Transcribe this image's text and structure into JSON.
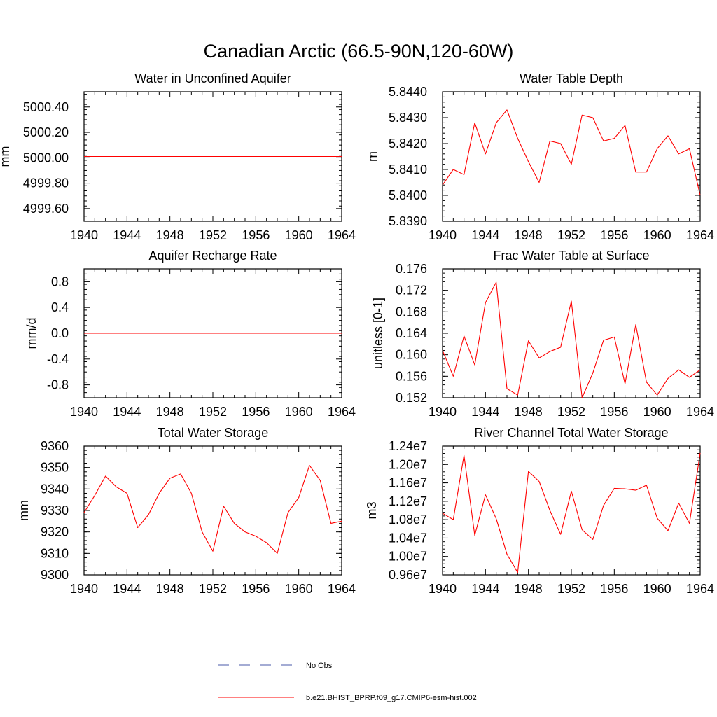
{
  "figure": {
    "title": "Canadian Arctic (66.5-90N,120-60W)"
  },
  "legend": {
    "items": [
      {
        "label": "No Obs",
        "color": "#4a5aa8",
        "dash": true
      },
      {
        "label": "b.e21.BHIST_BPRP.f09_g17.CMIP6-esm-hist.002",
        "color": "#ff0000",
        "dash": false
      }
    ]
  },
  "chart_data": [
    {
      "type": "line",
      "title": "Water in Unconfined Aquifer",
      "ylabel": "mm",
      "xlim": [
        1940,
        1964
      ],
      "ylim": [
        4999.5,
        5000.52
      ],
      "xticks": [
        1940,
        1944,
        1948,
        1952,
        1956,
        1960,
        1964
      ],
      "yticks": [
        4999.6,
        4999.8,
        5000.0,
        5000.2,
        5000.4
      ],
      "ytick_labels": [
        "4999.60",
        "4999.80",
        "5000.00",
        "5000.20",
        "5000.40"
      ],
      "yminor": 0.04,
      "series": [
        {
          "color": "#ff0000",
          "x": [
            1940,
            1941,
            1942,
            1943,
            1944,
            1945,
            1946,
            1947,
            1948,
            1949,
            1950,
            1951,
            1952,
            1953,
            1954,
            1955,
            1956,
            1957,
            1958,
            1959,
            1960,
            1961,
            1962,
            1963,
            1964
          ],
          "values": [
            5000.01,
            5000.01,
            5000.01,
            5000.01,
            5000.01,
            5000.01,
            5000.01,
            5000.01,
            5000.01,
            5000.01,
            5000.01,
            5000.01,
            5000.01,
            5000.01,
            5000.01,
            5000.01,
            5000.01,
            5000.01,
            5000.01,
            5000.01,
            5000.01,
            5000.01,
            5000.01,
            5000.01,
            5000.01
          ]
        }
      ]
    },
    {
      "type": "line",
      "title": "Water Table Depth",
      "ylabel": "m",
      "xlim": [
        1940,
        1964
      ],
      "ylim": [
        5.839,
        5.844
      ],
      "xticks": [
        1940,
        1944,
        1948,
        1952,
        1956,
        1960,
        1964
      ],
      "yticks": [
        5.839,
        5.84,
        5.841,
        5.842,
        5.843,
        5.844
      ],
      "ytick_labels": [
        "5.8390",
        "5.8400",
        "5.8410",
        "5.8420",
        "5.8430",
        "5.8440"
      ],
      "yminor": 0.0002,
      "series": [
        {
          "color": "#ff0000",
          "x": [
            1940,
            1941,
            1942,
            1943,
            1944,
            1945,
            1946,
            1947,
            1948,
            1949,
            1950,
            1951,
            1952,
            1953,
            1954,
            1955,
            1956,
            1957,
            1958,
            1959,
            1960,
            1961,
            1962,
            1963,
            1964
          ],
          "values": [
            5.8404,
            5.841,
            5.8408,
            5.8428,
            5.8416,
            5.8428,
            5.8433,
            5.8422,
            5.8413,
            5.8405,
            5.8421,
            5.842,
            5.8412,
            5.8431,
            5.843,
            5.8421,
            5.8422,
            5.8427,
            5.8409,
            5.8409,
            5.8418,
            5.8423,
            5.8416,
            5.8418,
            5.84
          ]
        }
      ]
    },
    {
      "type": "line",
      "title": "Aquifer Recharge Rate",
      "ylabel": "mm/d",
      "xlim": [
        1940,
        1964
      ],
      "ylim": [
        -1.0,
        1.0
      ],
      "xticks": [
        1940,
        1944,
        1948,
        1952,
        1956,
        1960,
        1964
      ],
      "yticks": [
        -0.8,
        -0.4,
        0.0,
        0.4,
        0.8
      ],
      "ytick_labels": [
        "-0.8",
        "-0.4",
        "0.0",
        "0.4",
        "0.8"
      ],
      "yminor": 0.08,
      "series": [
        {
          "color": "#ff0000",
          "x": [
            1940,
            1941,
            1942,
            1943,
            1944,
            1945,
            1946,
            1947,
            1948,
            1949,
            1950,
            1951,
            1952,
            1953,
            1954,
            1955,
            1956,
            1957,
            1958,
            1959,
            1960,
            1961,
            1962,
            1963,
            1964
          ],
          "values": [
            0,
            0,
            0,
            0,
            0,
            0,
            0,
            0,
            0,
            0,
            0,
            0,
            0,
            0,
            0,
            0,
            0,
            0,
            0,
            0,
            0,
            0,
            0,
            0,
            0
          ]
        }
      ]
    },
    {
      "type": "line",
      "title": "Frac Water Table at Surface",
      "ylabel": "unitless [0-1]",
      "xlim": [
        1940,
        1964
      ],
      "ylim": [
        0.152,
        0.176
      ],
      "xticks": [
        1940,
        1944,
        1948,
        1952,
        1956,
        1960,
        1964
      ],
      "yticks": [
        0.152,
        0.156,
        0.16,
        0.164,
        0.168,
        0.172,
        0.176
      ],
      "ytick_labels": [
        "0.152",
        "0.156",
        "0.160",
        "0.164",
        "0.168",
        "0.172",
        "0.176"
      ],
      "yminor": 0.0008,
      "series": [
        {
          "color": "#ff0000",
          "x": [
            1940,
            1941,
            1942,
            1943,
            1944,
            1945,
            1946,
            1947,
            1948,
            1949,
            1950,
            1951,
            1952,
            1953,
            1954,
            1955,
            1956,
            1957,
            1958,
            1959,
            1960,
            1961,
            1962,
            1963,
            1964
          ],
          "values": [
            0.1608,
            0.156,
            0.1635,
            0.1581,
            0.1697,
            0.1735,
            0.1537,
            0.1525,
            0.1626,
            0.1594,
            0.1606,
            0.1614,
            0.17,
            0.152,
            0.1566,
            0.1627,
            0.1633,
            0.1546,
            0.1656,
            0.1549,
            0.1525,
            0.1556,
            0.1572,
            0.1558,
            0.1572
          ]
        }
      ]
    },
    {
      "type": "line",
      "title": "Total Water Storage",
      "ylabel": "mm",
      "xlim": [
        1940,
        1964
      ],
      "ylim": [
        9300,
        9360
      ],
      "xticks": [
        1940,
        1944,
        1948,
        1952,
        1956,
        1960,
        1964
      ],
      "yticks": [
        9300,
        9310,
        9320,
        9330,
        9340,
        9350,
        9360
      ],
      "ytick_labels": [
        "9300",
        "9310",
        "9320",
        "9330",
        "9340",
        "9350",
        "9360"
      ],
      "yminor": 2,
      "series": [
        {
          "color": "#ff0000",
          "x": [
            1940,
            1941,
            1942,
            1943,
            1944,
            1945,
            1946,
            1947,
            1948,
            1949,
            1950,
            1951,
            1952,
            1953,
            1954,
            1955,
            1956,
            1957,
            1958,
            1959,
            1960,
            1961,
            1962,
            1963,
            1964
          ],
          "values": [
            9329,
            9337,
            9346,
            9341,
            9338,
            9322,
            9328,
            9338,
            9345,
            9347,
            9338,
            9320,
            9311,
            9332,
            9324,
            9320,
            9318,
            9315,
            9310,
            9329,
            9336,
            9351,
            9344,
            9324,
            9325
          ]
        }
      ]
    },
    {
      "type": "line",
      "title": "River Channel Total Water Storage",
      "ylabel": "m3",
      "xlim": [
        1940,
        1964
      ],
      "ylim": [
        9600000,
        12400000
      ],
      "xticks": [
        1940,
        1944,
        1948,
        1952,
        1956,
        1960,
        1964
      ],
      "yticks": [
        9600000,
        10000000,
        10400000,
        10800000,
        11200000,
        11600000,
        12000000,
        12400000
      ],
      "ytick_labels": [
        "0.96e7",
        "1.00e7",
        "1.04e7",
        "1.08e7",
        "1.12e7",
        "1.16e7",
        "1.20e7",
        "1.24e7"
      ],
      "yminor": 80000,
      "series": [
        {
          "color": "#ff0000",
          "x": [
            1940,
            1941,
            1942,
            1943,
            1944,
            1945,
            1946,
            1947,
            1948,
            1949,
            1950,
            1951,
            1952,
            1953,
            1954,
            1955,
            1956,
            1957,
            1958,
            1959,
            1960,
            1961,
            1962,
            1963,
            1964
          ],
          "values": [
            10940000,
            10800000,
            12200000,
            10460000,
            11340000,
            10820000,
            10050000,
            9650000,
            11850000,
            11630000,
            11000000,
            10480000,
            11420000,
            10580000,
            10370000,
            11110000,
            11480000,
            11470000,
            11440000,
            11550000,
            10830000,
            10560000,
            11160000,
            10720000,
            12250000
          ]
        }
      ]
    }
  ]
}
